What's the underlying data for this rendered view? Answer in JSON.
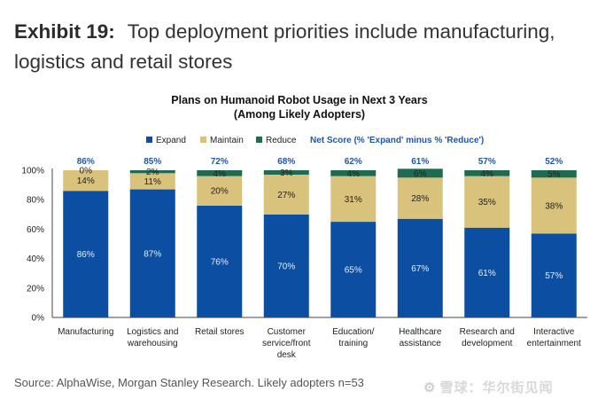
{
  "exhibit_label": "Exhibit 19:",
  "exhibit_title": "Top deployment priorities include manufacturing, logistics and retail stores",
  "source": "Source: AlphaWise, Morgan Stanley Research. Likely adopters n=53",
  "watermark": "雪球：华尔街见闻",
  "watermark_icon": "snowball-logo-icon",
  "colors": {
    "expand": "#0b4ea2",
    "maintain": "#d8c27c",
    "reduce": "#1e6b52",
    "net_score": "#1f56b0"
  },
  "chart_data": {
    "type": "bar",
    "stacked": true,
    "title": "Plans on Humanoid Robot Usage in Next 3 Years",
    "subtitle": "(Among Likely Adopters)",
    "categories": [
      [
        "Manufacturing"
      ],
      [
        "Logistics and",
        "warehousing"
      ],
      [
        "Retail stores"
      ],
      [
        "Customer",
        "service/front",
        "desk"
      ],
      [
        "Education/",
        "training"
      ],
      [
        "Healthcare",
        "assistance"
      ],
      [
        "Research and",
        "development"
      ],
      [
        "Interactive",
        "entertainment"
      ]
    ],
    "series": [
      {
        "name": "Expand",
        "values": [
          86,
          87,
          76,
          70,
          65,
          67,
          61,
          57
        ]
      },
      {
        "name": "Maintain",
        "values": [
          14,
          11,
          20,
          27,
          31,
          28,
          35,
          38
        ]
      },
      {
        "name": "Reduce",
        "values": [
          0,
          2,
          4,
          3,
          4,
          6,
          4,
          5
        ]
      }
    ],
    "net_score_label": "Net Score (% 'Expand' minus % 'Reduce')",
    "net_score": [
      86,
      85,
      72,
      68,
      62,
      61,
      57,
      52
    ],
    "ylim": [
      0,
      100
    ],
    "yticks": [
      "0%",
      "20%",
      "40%",
      "60%",
      "80%",
      "100%"
    ],
    "grid": false,
    "legend_position": "top"
  }
}
